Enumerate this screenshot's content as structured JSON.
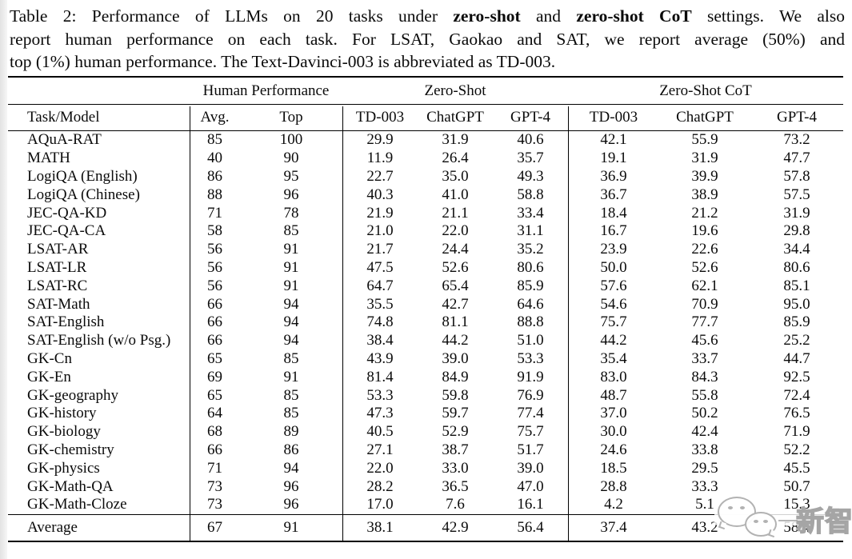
{
  "caption": {
    "line1_prefix": "Table 2: Performance of LLMs on 20 tasks under ",
    "line1_bold1": "zero-shot",
    "line1_mid": " and ",
    "line1_bold2": "zero-shot CoT",
    "line1_suffix": " settings. We also",
    "line2": "report human performance on each task. For LSAT, Gaokao and SAT, we report average (50%) and",
    "line3": "top (1%) human performance. The Text-Davinci-003 is abbreviated as TD-003."
  },
  "table": {
    "group_headers": [
      "Human Performance",
      "Zero-Shot",
      "Zero-Shot CoT"
    ],
    "col_headers": [
      "Task/Model",
      "Avg.",
      "Top",
      "TD-003",
      "ChatGPT",
      "GPT-4",
      "TD-003",
      "ChatGPT",
      "GPT-4"
    ],
    "rows": [
      {
        "task": "AQuA-RAT",
        "values": [
          "85",
          "100",
          "29.9",
          "31.9",
          "40.6",
          "42.1",
          "55.9",
          "73.2"
        ]
      },
      {
        "task": "MATH",
        "values": [
          "40",
          "90",
          "11.9",
          "26.4",
          "35.7",
          "19.1",
          "31.9",
          "47.7"
        ]
      },
      {
        "task": "LogiQA (English)",
        "values": [
          "86",
          "95",
          "22.7",
          "35.0",
          "49.3",
          "36.9",
          "39.9",
          "57.8"
        ]
      },
      {
        "task": "LogiQA (Chinese)",
        "values": [
          "88",
          "96",
          "40.3",
          "41.0",
          "58.8",
          "36.7",
          "38.9",
          "57.5"
        ]
      },
      {
        "task": "JEC-QA-KD",
        "values": [
          "71",
          "78",
          "21.9",
          "21.1",
          "33.4",
          "18.4",
          "21.2",
          "31.9"
        ]
      },
      {
        "task": "JEC-QA-CA",
        "values": [
          "58",
          "85",
          "21.0",
          "22.0",
          "31.1",
          "16.7",
          "19.6",
          "29.8"
        ]
      },
      {
        "task": "LSAT-AR",
        "values": [
          "56",
          "91",
          "21.7",
          "24.4",
          "35.2",
          "23.9",
          "22.6",
          "34.4"
        ]
      },
      {
        "task": "LSAT-LR",
        "values": [
          "56",
          "91",
          "47.5",
          "52.6",
          "80.6",
          "50.0",
          "52.6",
          "80.6"
        ]
      },
      {
        "task": "LSAT-RC",
        "values": [
          "56",
          "91",
          "64.7",
          "65.4",
          "85.9",
          "57.6",
          "62.1",
          "85.1"
        ]
      },
      {
        "task": "SAT-Math",
        "values": [
          "66",
          "94",
          "35.5",
          "42.7",
          "64.6",
          "54.6",
          "70.9",
          "95.0"
        ]
      },
      {
        "task": "SAT-English",
        "values": [
          "66",
          "94",
          "74.8",
          "81.1",
          "88.8",
          "75.7",
          "77.7",
          "85.9"
        ]
      },
      {
        "task": "SAT-English (w/o Psg.)",
        "values": [
          "66",
          "94",
          "38.4",
          "44.2",
          "51.0",
          "44.2",
          "45.6",
          "25.2"
        ]
      },
      {
        "task": "GK-Cn",
        "values": [
          "65",
          "85",
          "43.9",
          "39.0",
          "53.3",
          "35.4",
          "33.7",
          "44.7"
        ]
      },
      {
        "task": "GK-En",
        "values": [
          "69",
          "91",
          "81.4",
          "84.9",
          "91.9",
          "83.0",
          "84.3",
          "92.5"
        ]
      },
      {
        "task": "GK-geography",
        "values": [
          "65",
          "85",
          "53.3",
          "59.8",
          "76.9",
          "48.7",
          "55.8",
          "72.4"
        ]
      },
      {
        "task": "GK-history",
        "values": [
          "64",
          "85",
          "47.3",
          "59.7",
          "77.4",
          "37.0",
          "50.2",
          "76.5"
        ]
      },
      {
        "task": "GK-biology",
        "values": [
          "68",
          "89",
          "40.5",
          "52.9",
          "75.7",
          "30.0",
          "42.4",
          "71.9"
        ]
      },
      {
        "task": "GK-chemistry",
        "values": [
          "66",
          "86",
          "27.1",
          "38.7",
          "51.7",
          "24.6",
          "33.8",
          "52.2"
        ]
      },
      {
        "task": "GK-physics",
        "values": [
          "71",
          "94",
          "22.0",
          "33.0",
          "39.0",
          "18.5",
          "29.5",
          "45.5"
        ]
      },
      {
        "task": "GK-Math-QA",
        "values": [
          "73",
          "96",
          "28.2",
          "36.5",
          "47.0",
          "28.8",
          "33.3",
          "50.7"
        ]
      },
      {
        "task": "GK-Math-Cloze",
        "values": [
          "73",
          "96",
          "17.0",
          "7.6",
          "16.1",
          "4.2",
          "5.1",
          "15.3"
        ]
      }
    ],
    "average_row": {
      "task": "Average",
      "values": [
        "67",
        "91",
        "38.1",
        "42.9",
        "56.4",
        "37.4",
        "43.2",
        "58.4"
      ]
    }
  },
  "watermark": {
    "text": "新智元",
    "logo": "wechat-chat-bubbles"
  },
  "colors": {
    "rule": "#000000",
    "text": "#0b0b0b",
    "watermark_stroke": "#a5a5a5"
  }
}
